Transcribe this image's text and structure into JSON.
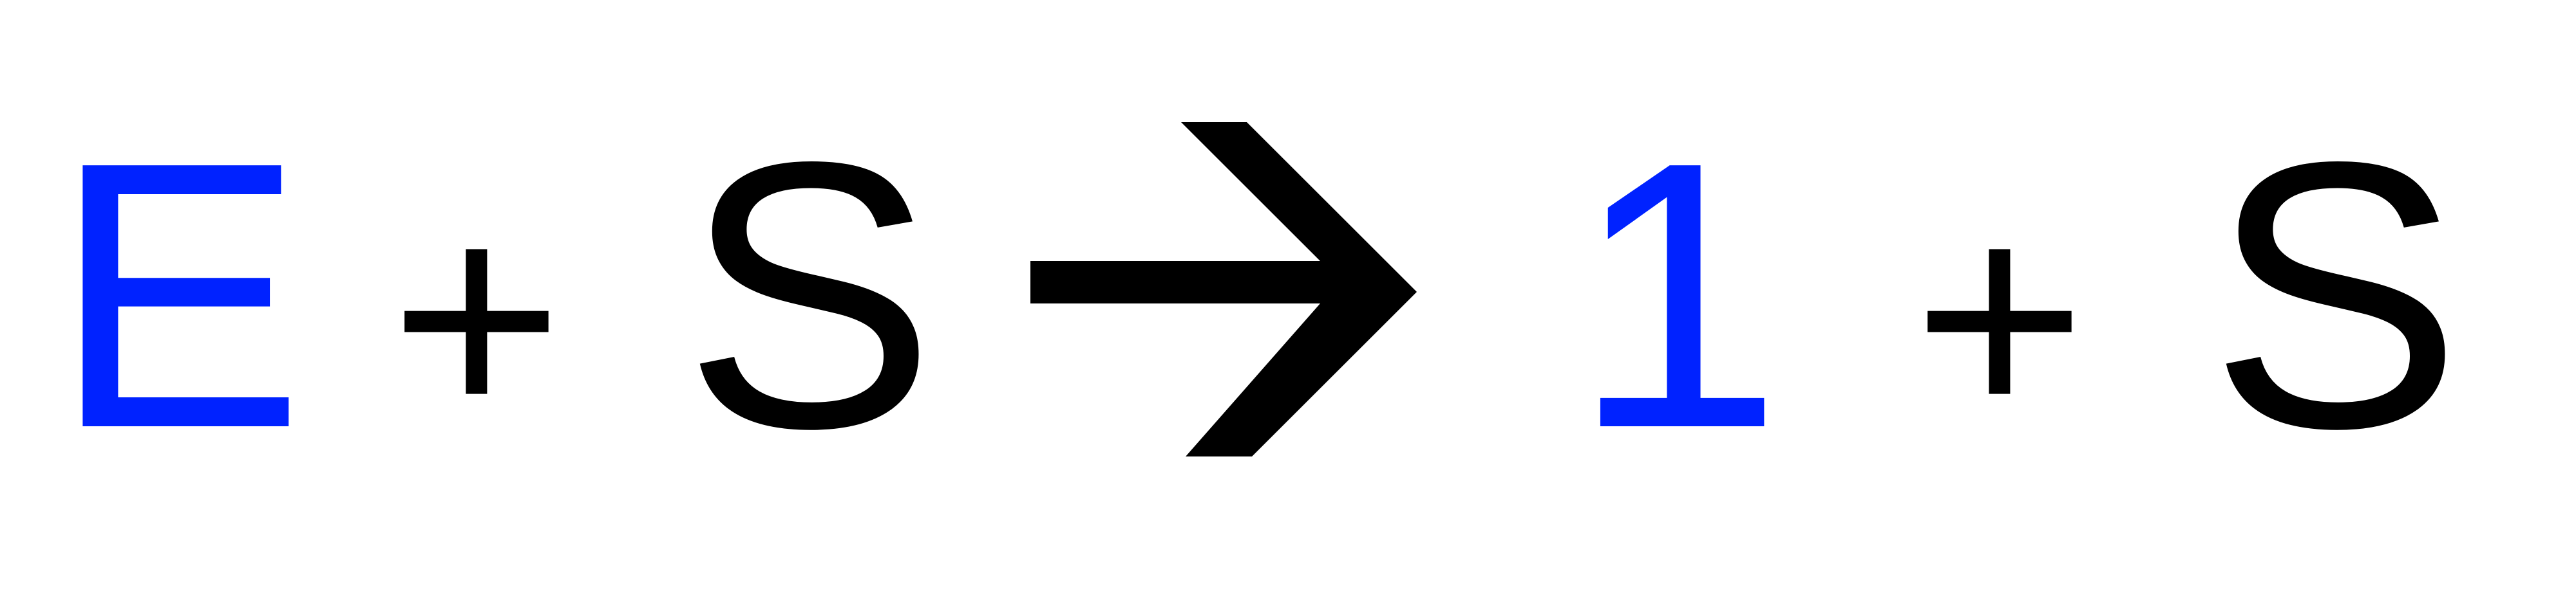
{
  "equation": {
    "reactant_1": "E",
    "operator_1": "+",
    "reactant_2": "S",
    "product_1": "1",
    "operator_2": "+",
    "product_2": "S"
  },
  "colors": {
    "highlight": "#0022ff",
    "default": "#000000"
  },
  "icons": {
    "arrow": "right-arrow-icon"
  }
}
